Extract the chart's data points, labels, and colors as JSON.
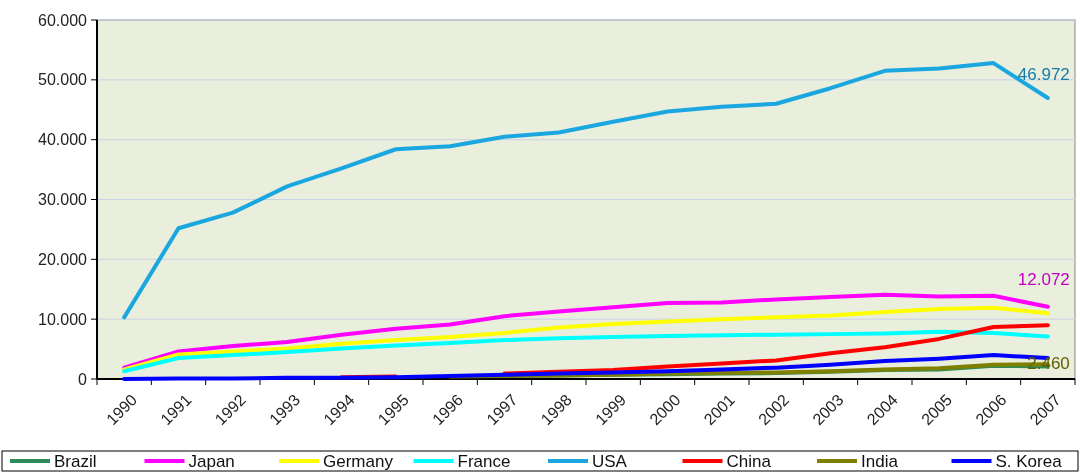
{
  "chart_data": {
    "type": "line",
    "categories": [
      "1990",
      "1991",
      "1992",
      "1993",
      "1994",
      "1995",
      "1996",
      "1997",
      "1998",
      "1999",
      "2000",
      "2001",
      "2002",
      "2003",
      "2004",
      "2005",
      "2006",
      "2007"
    ],
    "ylim": [
      0,
      60000
    ],
    "yticks": [
      {
        "value": 0,
        "label": "0"
      },
      {
        "value": 10000,
        "label": "10.000"
      },
      {
        "value": 20000,
        "label": "20.000"
      },
      {
        "value": 30000,
        "label": "30.000"
      },
      {
        "value": 40000,
        "label": "40.000"
      },
      {
        "value": 50000,
        "label": "50.000"
      },
      {
        "value": 60000,
        "label": "60.000"
      }
    ],
    "grid": "y",
    "legend": "bottom",
    "marker": "none",
    "line_style": "solid",
    "series": [
      {
        "name": "Brazil",
        "color": "#2e8b57",
        "values": [
          null,
          null,
          null,
          null,
          null,
          null,
          null,
          500,
          600,
          700,
          800,
          900,
          1000,
          1200,
          1500,
          1600,
          2200,
          2100
        ]
      },
      {
        "name": "Japan",
        "color": "#ff00ff",
        "values": [
          1900,
          4600,
          5500,
          6200,
          7400,
          8400,
          9100,
          10500,
          11300,
          12000,
          12700,
          12800,
          13300,
          13700,
          14100,
          13800,
          13900,
          12072
        ],
        "value_labels": [
          null,
          null,
          null,
          null,
          null,
          null,
          null,
          null,
          null,
          null,
          null,
          null,
          null,
          null,
          null,
          null,
          null,
          "12.072"
        ]
      },
      {
        "name": "Germany",
        "color": "#ffff00",
        "values": [
          1600,
          4100,
          4600,
          5100,
          5900,
          6500,
          7000,
          7700,
          8600,
          9200,
          9600,
          10000,
          10300,
          10600,
          11200,
          11700,
          11900,
          11000
        ]
      },
      {
        "name": "France",
        "color": "#00ffff",
        "values": [
          1300,
          3500,
          4000,
          4500,
          5100,
          5600,
          6000,
          6500,
          6800,
          7000,
          7200,
          7300,
          7400,
          7500,
          7600,
          7900,
          7700,
          7100
        ]
      },
      {
        "name": "USA",
        "color": "#1aa7e0",
        "values": [
          10300,
          25200,
          27800,
          32200,
          35200,
          38400,
          38900,
          40500,
          41200,
          43000,
          44700,
          45500,
          46000,
          48600,
          51500,
          51900,
          52800,
          46972
        ],
        "value_labels": [
          null,
          null,
          null,
          null,
          null,
          null,
          null,
          null,
          null,
          null,
          null,
          null,
          null,
          null,
          null,
          null,
          null,
          "46.972"
        ]
      },
      {
        "name": "China",
        "color": "#ff0000",
        "values": [
          null,
          null,
          null,
          null,
          300,
          400,
          null,
          900,
          1200,
          1500,
          2100,
          2600,
          3100,
          4300,
          5300,
          6700,
          8700,
          9000
        ]
      },
      {
        "name": "India",
        "color": "#808000",
        "values": [
          null,
          null,
          null,
          null,
          null,
          null,
          400,
          500,
          600,
          700,
          900,
          1000,
          1100,
          1300,
          1600,
          1800,
          2400,
          2460
        ],
        "value_labels": [
          null,
          null,
          null,
          null,
          null,
          null,
          null,
          null,
          null,
          null,
          null,
          null,
          null,
          null,
          null,
          null,
          null,
          "2.460"
        ]
      },
      {
        "name": "S. Korea",
        "color": "#0000ff",
        "values": [
          0,
          100,
          100,
          200,
          200,
          300,
          500,
          700,
          900,
          1100,
          1300,
          1600,
          1900,
          2400,
          3000,
          3400,
          4000,
          3500
        ]
      }
    ]
  }
}
